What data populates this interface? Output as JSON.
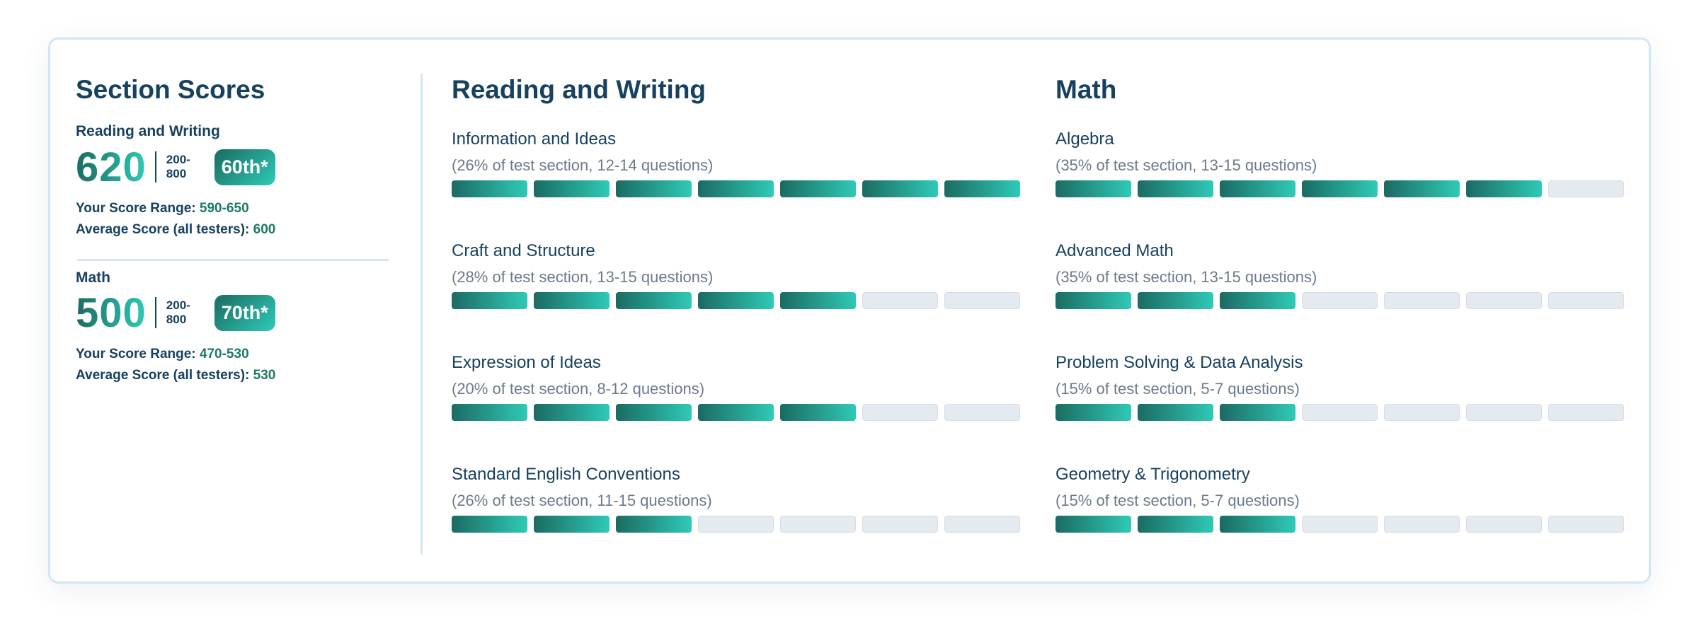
{
  "left": {
    "title": "Section Scores",
    "sections": [
      {
        "label": "Reading and Writing",
        "score": "620",
        "range_top": "200-",
        "range_bottom": "800",
        "percentile": "60th*",
        "range_label": "Your Score Range: ",
        "range_value": "590-650",
        "avg_label": "Average Score (all testers): ",
        "avg_value": "600"
      },
      {
        "label": "Math",
        "score": "500",
        "range_top": "200-",
        "range_bottom": "800",
        "percentile": "70th*",
        "range_label": "Your Score Range: ",
        "range_value": "470-530",
        "avg_label": "Average Score (all testers): ",
        "avg_value": "530"
      }
    ]
  },
  "columns": [
    {
      "title": "Reading and Writing",
      "items": [
        {
          "name": "Information and Ideas",
          "desc": "(26% of test section, 12-14 questions)",
          "filled": 7,
          "total": 7
        },
        {
          "name": "Craft and Structure",
          "desc": "(28% of test section, 13-15 questions)",
          "filled": 5,
          "total": 7
        },
        {
          "name": "Expression of Ideas",
          "desc": "(20% of test section, 8-12 questions)",
          "filled": 5,
          "total": 7
        },
        {
          "name": "Standard English Conventions",
          "desc": "(26% of test section, 11-15 questions)",
          "filled": 3,
          "total": 7
        }
      ]
    },
    {
      "title": "Math",
      "items": [
        {
          "name": "Algebra",
          "desc": "(35% of test section, 13-15 questions)",
          "filled": 6,
          "total": 7
        },
        {
          "name": "Advanced Math",
          "desc": "(35% of test section, 13-15 questions)",
          "filled": 3,
          "total": 7
        },
        {
          "name": "Problem Solving & Data Analysis",
          "desc": "(15% of test section, 5-7 questions)",
          "filled": 3,
          "total": 7
        },
        {
          "name": "Geometry & Trigonometry",
          "desc": "(15% of test section, 5-7 questions)",
          "filled": 3,
          "total": 7
        }
      ]
    }
  ],
  "colors": {
    "accent_start": "#1b6b62",
    "accent_end": "#2fcab7",
    "text": "#16415f",
    "empty_bar": "#e5eaf0"
  }
}
